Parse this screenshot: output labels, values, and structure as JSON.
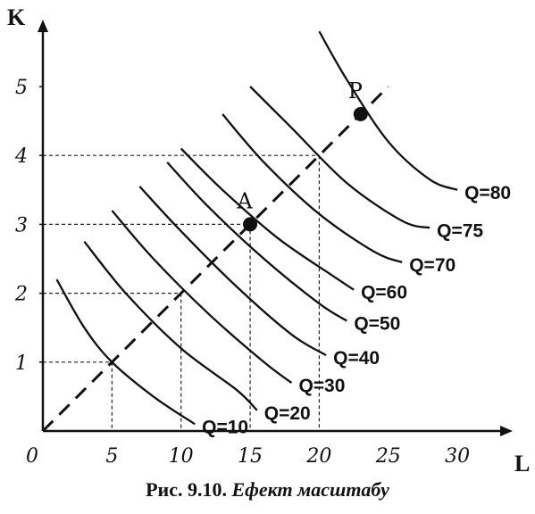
{
  "chart_data": {
    "type": "line",
    "xlabel": "L",
    "ylabel": "K",
    "xlim": [
      0,
      32
    ],
    "ylim": [
      0,
      5.6
    ],
    "x_ticks": [
      "0",
      "5",
      "10",
      "15",
      "20",
      "25",
      "30"
    ],
    "y_ticks": [
      "1",
      "2",
      "3",
      "4",
      "5"
    ],
    "isoquants": [
      {
        "label": "Q=10",
        "points": [
          [
            1,
            2.2
          ],
          [
            3,
            1.5
          ],
          [
            5,
            1.0
          ],
          [
            8,
            0.5
          ],
          [
            11,
            0.1
          ]
        ]
      },
      {
        "label": "Q=20",
        "points": [
          [
            3,
            2.75
          ],
          [
            6,
            2.0
          ],
          [
            10,
            1.2
          ],
          [
            14,
            0.6
          ],
          [
            15.5,
            0.3
          ]
        ]
      },
      {
        "label": "Q=30",
        "points": [
          [
            5,
            3.2
          ],
          [
            8,
            2.5
          ],
          [
            12,
            1.7
          ],
          [
            16,
            1.0
          ],
          [
            18,
            0.7
          ]
        ]
      },
      {
        "label": "Q=40",
        "points": [
          [
            7,
            3.55
          ],
          [
            10,
            2.9
          ],
          [
            14,
            2.1
          ],
          [
            18,
            1.4
          ],
          [
            20.5,
            1.1
          ]
        ]
      },
      {
        "label": "Q=50",
        "points": [
          [
            9,
            3.9
          ],
          [
            12,
            3.25
          ],
          [
            16,
            2.5
          ],
          [
            20,
            1.85
          ],
          [
            22,
            1.6
          ]
        ]
      },
      {
        "label": "Q=60",
        "points": [
          [
            10,
            4.1
          ],
          [
            13,
            3.5
          ],
          [
            17,
            2.8
          ],
          [
            21,
            2.25
          ],
          [
            22.5,
            2.05
          ]
        ]
      },
      {
        "label": "Q=70",
        "points": [
          [
            13,
            4.6
          ],
          [
            16,
            3.9
          ],
          [
            20,
            3.15
          ],
          [
            24,
            2.6
          ],
          [
            26,
            2.45
          ]
        ]
      },
      {
        "label": "Q=75",
        "points": [
          [
            15,
            5.0
          ],
          [
            18,
            4.4
          ],
          [
            22,
            3.6
          ],
          [
            26,
            3.05
          ],
          [
            28,
            2.95
          ]
        ]
      },
      {
        "label": "Q=80",
        "points": [
          [
            20,
            5.8
          ],
          [
            22,
            5.1
          ],
          [
            25,
            4.2
          ],
          [
            28,
            3.65
          ],
          [
            30,
            3.5
          ]
        ]
      }
    ],
    "points": [
      {
        "label": "A",
        "x": 15,
        "y": 3
      },
      {
        "label": "P",
        "x": 23,
        "y": 4.6
      }
    ],
    "ray": {
      "from": [
        0,
        0
      ],
      "to": [
        25,
        5
      ]
    },
    "guides": [
      {
        "x": 5,
        "y": 1
      },
      {
        "x": 10,
        "y": 2
      },
      {
        "x": 15,
        "y": 3
      },
      {
        "x": 20,
        "y": 4
      }
    ],
    "grid": false,
    "legend": "none"
  },
  "caption": {
    "prefix": "Рис. 9.10.",
    "title": "Ефект  масштабу"
  }
}
